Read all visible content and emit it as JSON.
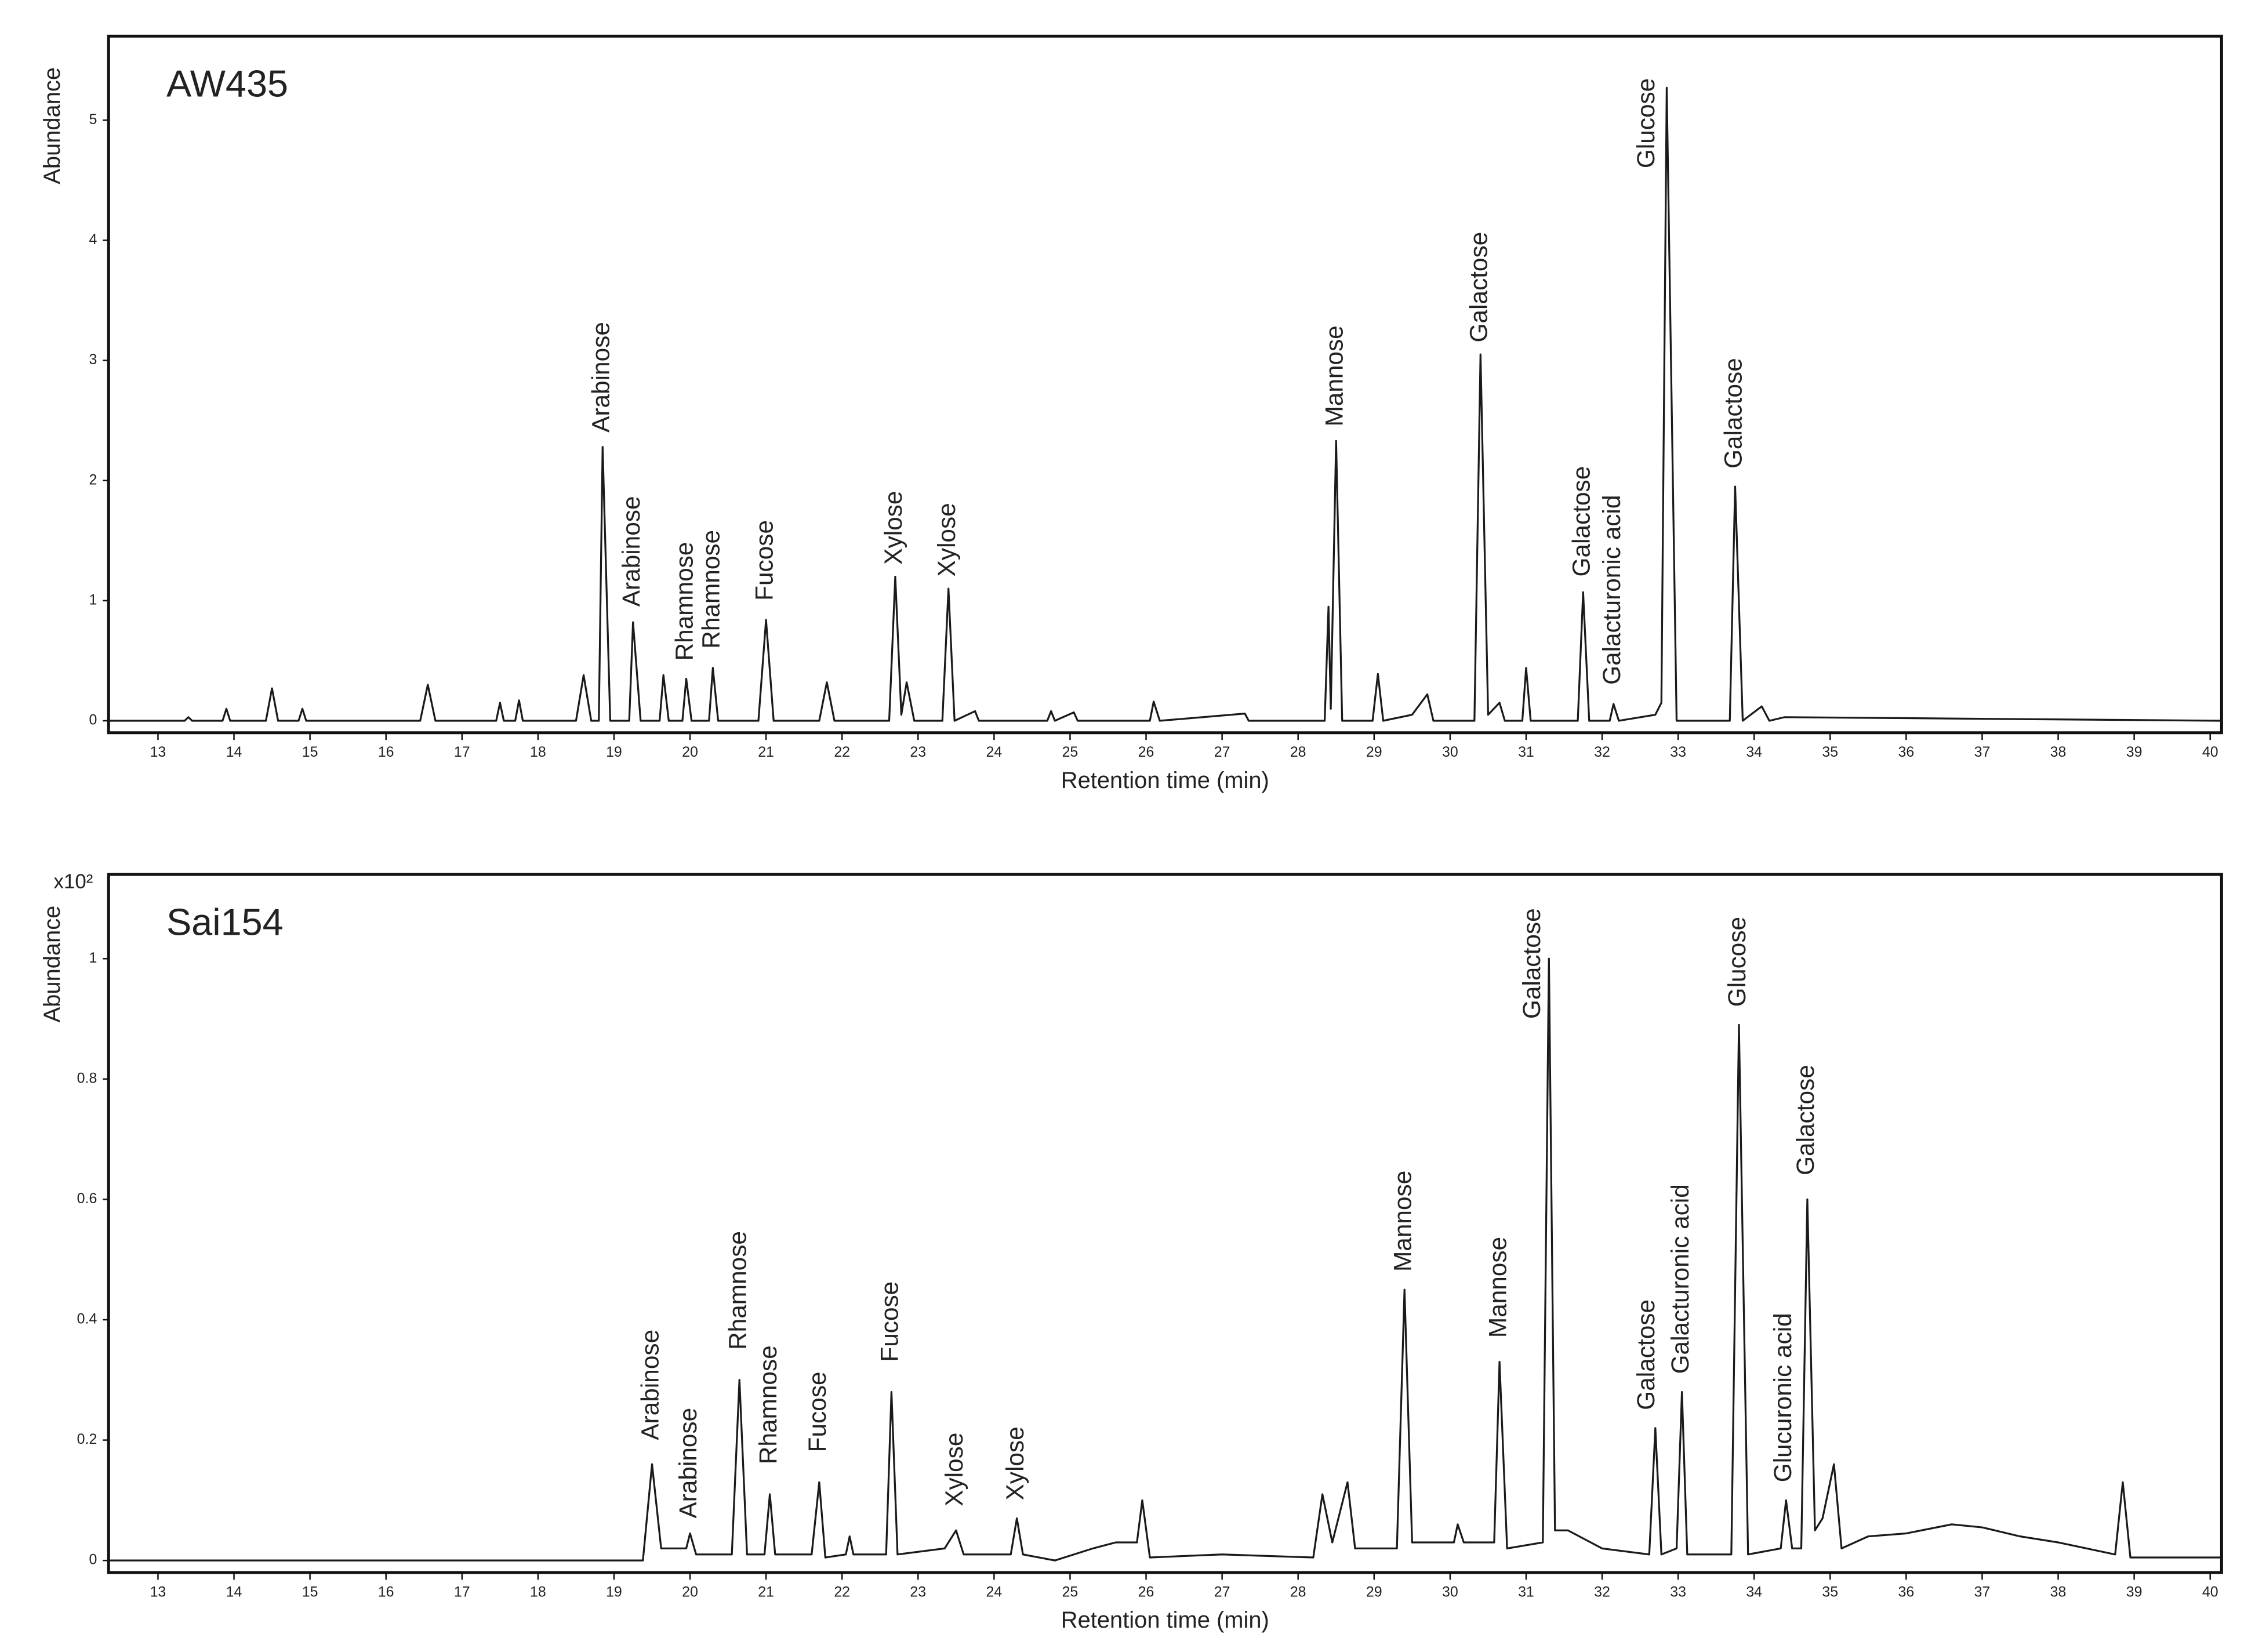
{
  "chart_data": [
    {
      "type": "line",
      "title": "AW435",
      "x_label": "Retention time (min)",
      "y_label": "Abundance",
      "color": "#1a1a1a",
      "xlim": [
        12.35,
        40.15
      ],
      "ylim": [
        -0.1,
        5.7
      ],
      "xticks": [
        13,
        14,
        15,
        16,
        17,
        18,
        19,
        20,
        21,
        22,
        23,
        24,
        25,
        26,
        27,
        28,
        29,
        30,
        31,
        32,
        33,
        34,
        35,
        36,
        37,
        38,
        39,
        40
      ],
      "yticks": [
        0,
        1,
        2,
        3,
        4,
        5
      ],
      "x": [
        12.35,
        13.35,
        13.4,
        13.45,
        13.85,
        13.9,
        13.95,
        14.42,
        14.5,
        14.58,
        14.85,
        14.9,
        14.95,
        16.45,
        16.55,
        16.65,
        17.45,
        17.5,
        17.55,
        17.7,
        17.75,
        17.8,
        18.5,
        18.6,
        18.7,
        18.8,
        18.85,
        18.95,
        19.2,
        19.25,
        19.35,
        19.6,
        19.65,
        19.72,
        19.9,
        19.95,
        20.02,
        20.25,
        20.3,
        20.37,
        20.9,
        21.0,
        21.1,
        21.7,
        21.8,
        21.9,
        22.62,
        22.7,
        22.78,
        22.85,
        22.95,
        23.32,
        23.4,
        23.48,
        23.75,
        23.8,
        24.7,
        24.75,
        24.8,
        25.05,
        25.1,
        26.05,
        26.1,
        26.18,
        27.3,
        27.35,
        28.35,
        28.4,
        28.43,
        28.5,
        28.58,
        28.98,
        29.05,
        29.12,
        29.5,
        29.7,
        29.78,
        30.32,
        30.4,
        30.5,
        30.65,
        30.72,
        30.95,
        31.0,
        31.06,
        31.68,
        31.75,
        31.83,
        32.1,
        32.15,
        32.22,
        32.7,
        32.78,
        32.85,
        32.98,
        33.68,
        33.75,
        33.85,
        34.1,
        34.2,
        34.4,
        40.15
      ],
      "values": [
        0,
        0,
        0.03,
        0,
        0,
        0.1,
        0,
        0,
        0.27,
        0,
        0,
        0.1,
        0,
        0,
        0.3,
        0,
        0,
        0.15,
        0,
        0,
        0.17,
        0,
        0,
        0.38,
        0,
        0,
        2.28,
        0,
        0,
        0.82,
        0,
        0,
        0.38,
        0,
        0,
        0.35,
        0,
        0,
        0.44,
        0,
        0,
        0.84,
        0,
        0,
        0.32,
        0,
        0,
        1.2,
        0.05,
        0.32,
        0,
        0,
        1.1,
        0,
        0.08,
        0,
        0,
        0.08,
        0,
        0.07,
        0,
        0,
        0.16,
        0,
        0.06,
        0,
        0,
        0.95,
        0.1,
        2.33,
        0,
        0,
        0.39,
        0,
        0.05,
        0.22,
        0,
        0,
        3.05,
        0.05,
        0.15,
        0,
        0,
        0.44,
        0,
        0,
        1.07,
        0,
        0,
        0.14,
        0,
        0.05,
        0.15,
        5.27,
        0,
        0,
        1.95,
        0,
        0.12,
        0,
        0.03,
        0
      ],
      "annotations": [
        {
          "text": "Arabinose",
          "x": 18.85,
          "y": 2.4
        },
        {
          "text": "Arabinose",
          "x": 19.25,
          "y": 0.95
        },
        {
          "text": "Rhamnose",
          "x": 19.95,
          "y": 0.5
        },
        {
          "text": "Rhamnose",
          "x": 20.3,
          "y": 0.6
        },
        {
          "text": "Fucose",
          "x": 21.0,
          "y": 1.0
        },
        {
          "text": "Xylose",
          "x": 22.7,
          "y": 1.3
        },
        {
          "text": "Xylose",
          "x": 23.4,
          "y": 1.2
        },
        {
          "text": "Mannose",
          "x": 28.5,
          "y": 2.45
        },
        {
          "text": "Galactose",
          "x": 30.4,
          "y": 3.15
        },
        {
          "text": "Galactose",
          "x": 31.75,
          "y": 1.2
        },
        {
          "text": "Galacturonic acid",
          "x": 32.15,
          "y": 0.3
        },
        {
          "text": "Glucose",
          "x": 32.6,
          "y": 4.6
        },
        {
          "text": "Galactose",
          "x": 33.75,
          "y": 2.1
        }
      ]
    },
    {
      "type": "line",
      "title": "Sai154",
      "x_label": "Retention time (min)",
      "y_label": "Abundance",
      "y_multiplier": "x10²",
      "color": "#1a1a1a",
      "xlim": [
        12.35,
        40.15
      ],
      "ylim": [
        -0.02,
        1.14
      ],
      "xticks": [
        13,
        14,
        15,
        16,
        17,
        18,
        19,
        20,
        21,
        22,
        23,
        24,
        25,
        26,
        27,
        28,
        29,
        30,
        31,
        32,
        33,
        34,
        35,
        36,
        37,
        38,
        39,
        40
      ],
      "yticks": [
        0,
        0.2,
        0.4,
        0.6,
        0.8,
        1
      ],
      "x": [
        12.35,
        19.38,
        19.5,
        19.62,
        19.95,
        20.0,
        20.08,
        20.55,
        20.65,
        20.75,
        20.98,
        21.05,
        21.12,
        21.6,
        21.7,
        21.78,
        22.05,
        22.1,
        22.15,
        22.58,
        22.65,
        22.73,
        23.35,
        23.5,
        23.6,
        24.22,
        24.3,
        24.38,
        24.8,
        25.3,
        25.6,
        25.88,
        25.95,
        26.05,
        27.0,
        28.2,
        28.32,
        28.45,
        28.65,
        28.75,
        29.3,
        29.4,
        29.5,
        30.05,
        30.1,
        30.18,
        30.58,
        30.65,
        30.75,
        31.22,
        31.3,
        31.38,
        31.55,
        32.0,
        32.62,
        32.7,
        32.78,
        32.98,
        33.05,
        33.12,
        33.7,
        33.8,
        33.92,
        34.35,
        34.42,
        34.5,
        34.62,
        34.7,
        34.8,
        34.9,
        35.05,
        35.15,
        35.5,
        36.0,
        36.6,
        37.0,
        37.5,
        38.0,
        38.75,
        38.85,
        38.95,
        40.15
      ],
      "values": [
        0,
        0,
        0.16,
        0.02,
        0.02,
        0.045,
        0.01,
        0.01,
        0.3,
        0.01,
        0.01,
        0.11,
        0.01,
        0.01,
        0.13,
        0.005,
        0.01,
        0.04,
        0.01,
        0.01,
        0.28,
        0.01,
        0.02,
        0.05,
        0.01,
        0.01,
        0.07,
        0.01,
        0,
        0.02,
        0.03,
        0.03,
        0.1,
        0.005,
        0.01,
        0.005,
        0.11,
        0.03,
        0.13,
        0.02,
        0.02,
        0.45,
        0.03,
        0.03,
        0.06,
        0.03,
        0.03,
        0.33,
        0.02,
        0.03,
        1.0,
        0.05,
        0.05,
        0.02,
        0.01,
        0.22,
        0.01,
        0.02,
        0.28,
        0.01,
        0.01,
        0.89,
        0.01,
        0.02,
        0.1,
        0.02,
        0.02,
        0.6,
        0.05,
        0.07,
        0.16,
        0.02,
        0.04,
        0.045,
        0.06,
        0.055,
        0.04,
        0.03,
        0.01,
        0.13,
        0.005,
        0.005
      ],
      "annotations": [
        {
          "text": "Arabinose",
          "x": 19.5,
          "y": 0.2
        },
        {
          "text": "Arabinose",
          "x": 20.0,
          "y": 0.07
        },
        {
          "text": "Rhamnose",
          "x": 20.65,
          "y": 0.35
        },
        {
          "text": "Rhamnose",
          "x": 21.05,
          "y": 0.16
        },
        {
          "text": "Fucose",
          "x": 21.7,
          "y": 0.18
        },
        {
          "text": "Fucose",
          "x": 22.65,
          "y": 0.33
        },
        {
          "text": "Xylose",
          "x": 23.5,
          "y": 0.09
        },
        {
          "text": "Xylose",
          "x": 24.3,
          "y": 0.1
        },
        {
          "text": "Mannose",
          "x": 29.4,
          "y": 0.48
        },
        {
          "text": "Mannose",
          "x": 30.65,
          "y": 0.37
        },
        {
          "text": "Galactose",
          "x": 31.1,
          "y": 0.9
        },
        {
          "text": "Galactose",
          "x": 32.6,
          "y": 0.25
        },
        {
          "text": "Galacturonic acid",
          "x": 33.05,
          "y": 0.31
        },
        {
          "text": "Glucose",
          "x": 33.8,
          "y": 0.92
        },
        {
          "text": "Glucuronic acid",
          "x": 34.4,
          "y": 0.13
        },
        {
          "text": "Galactose",
          "x": 34.7,
          "y": 0.64
        }
      ]
    }
  ]
}
